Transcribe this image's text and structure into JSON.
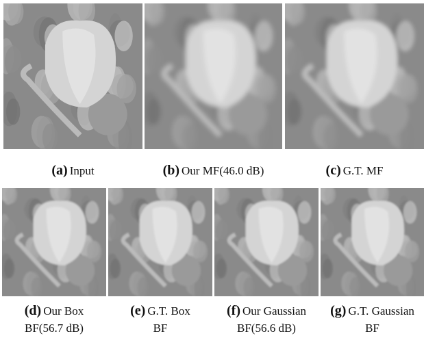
{
  "figures": [
    {
      "label": "(a)",
      "caption": [
        "Input"
      ]
    },
    {
      "label": "(b)",
      "caption": [
        "Our MF(46.0 dB)"
      ]
    },
    {
      "label": "(c)",
      "caption": [
        "G.T. MF"
      ]
    },
    {
      "label": "(d)",
      "caption": [
        "Our Box",
        "BF(56.7 dB)"
      ]
    },
    {
      "label": "(e)",
      "caption": [
        "G.T. Box",
        "BF"
      ]
    },
    {
      "label": "(f)",
      "caption": [
        "Our Gaussian",
        "BF(56.6 dB)"
      ]
    },
    {
      "label": "(g)",
      "caption": [
        "G.T. Gaussian",
        "BF"
      ]
    }
  ]
}
